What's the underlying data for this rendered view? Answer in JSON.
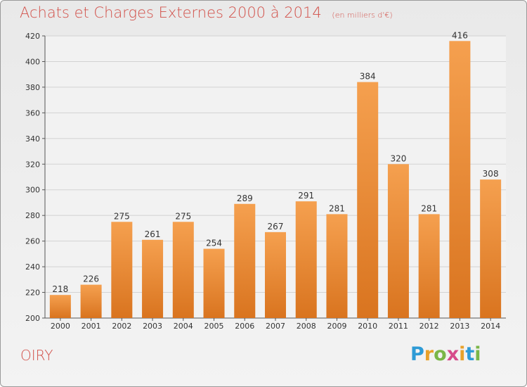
{
  "chart_data": {
    "type": "bar",
    "title": "Achats et Charges Externes 2000 à 2014",
    "subtitle": "(en milliers d'€)",
    "categories": [
      "2000",
      "2001",
      "2002",
      "2003",
      "2004",
      "2005",
      "2006",
      "2007",
      "2008",
      "2009",
      "2010",
      "2011",
      "2012",
      "2013",
      "2014"
    ],
    "values": [
      218,
      226,
      275,
      261,
      275,
      254,
      289,
      267,
      291,
      281,
      384,
      320,
      281,
      416,
      308
    ],
    "ylim": [
      200,
      420
    ],
    "yticks": [
      200,
      220,
      240,
      260,
      280,
      300,
      320,
      340,
      360,
      380,
      400,
      420
    ],
    "grid": true,
    "bar_color_top": "#f5a04f",
    "bar_color_bottom": "#d9741f"
  },
  "footer": {
    "commune": "OIRY",
    "logo_letters": [
      "P",
      "r",
      "o",
      "x",
      "i",
      "t",
      "i"
    ],
    "logo_colors": [
      "#2e9bd6",
      "#e8a12a",
      "#7ab648",
      "#d64a8b",
      "#e8a12a",
      "#2e9bd6",
      "#7ab648"
    ]
  }
}
